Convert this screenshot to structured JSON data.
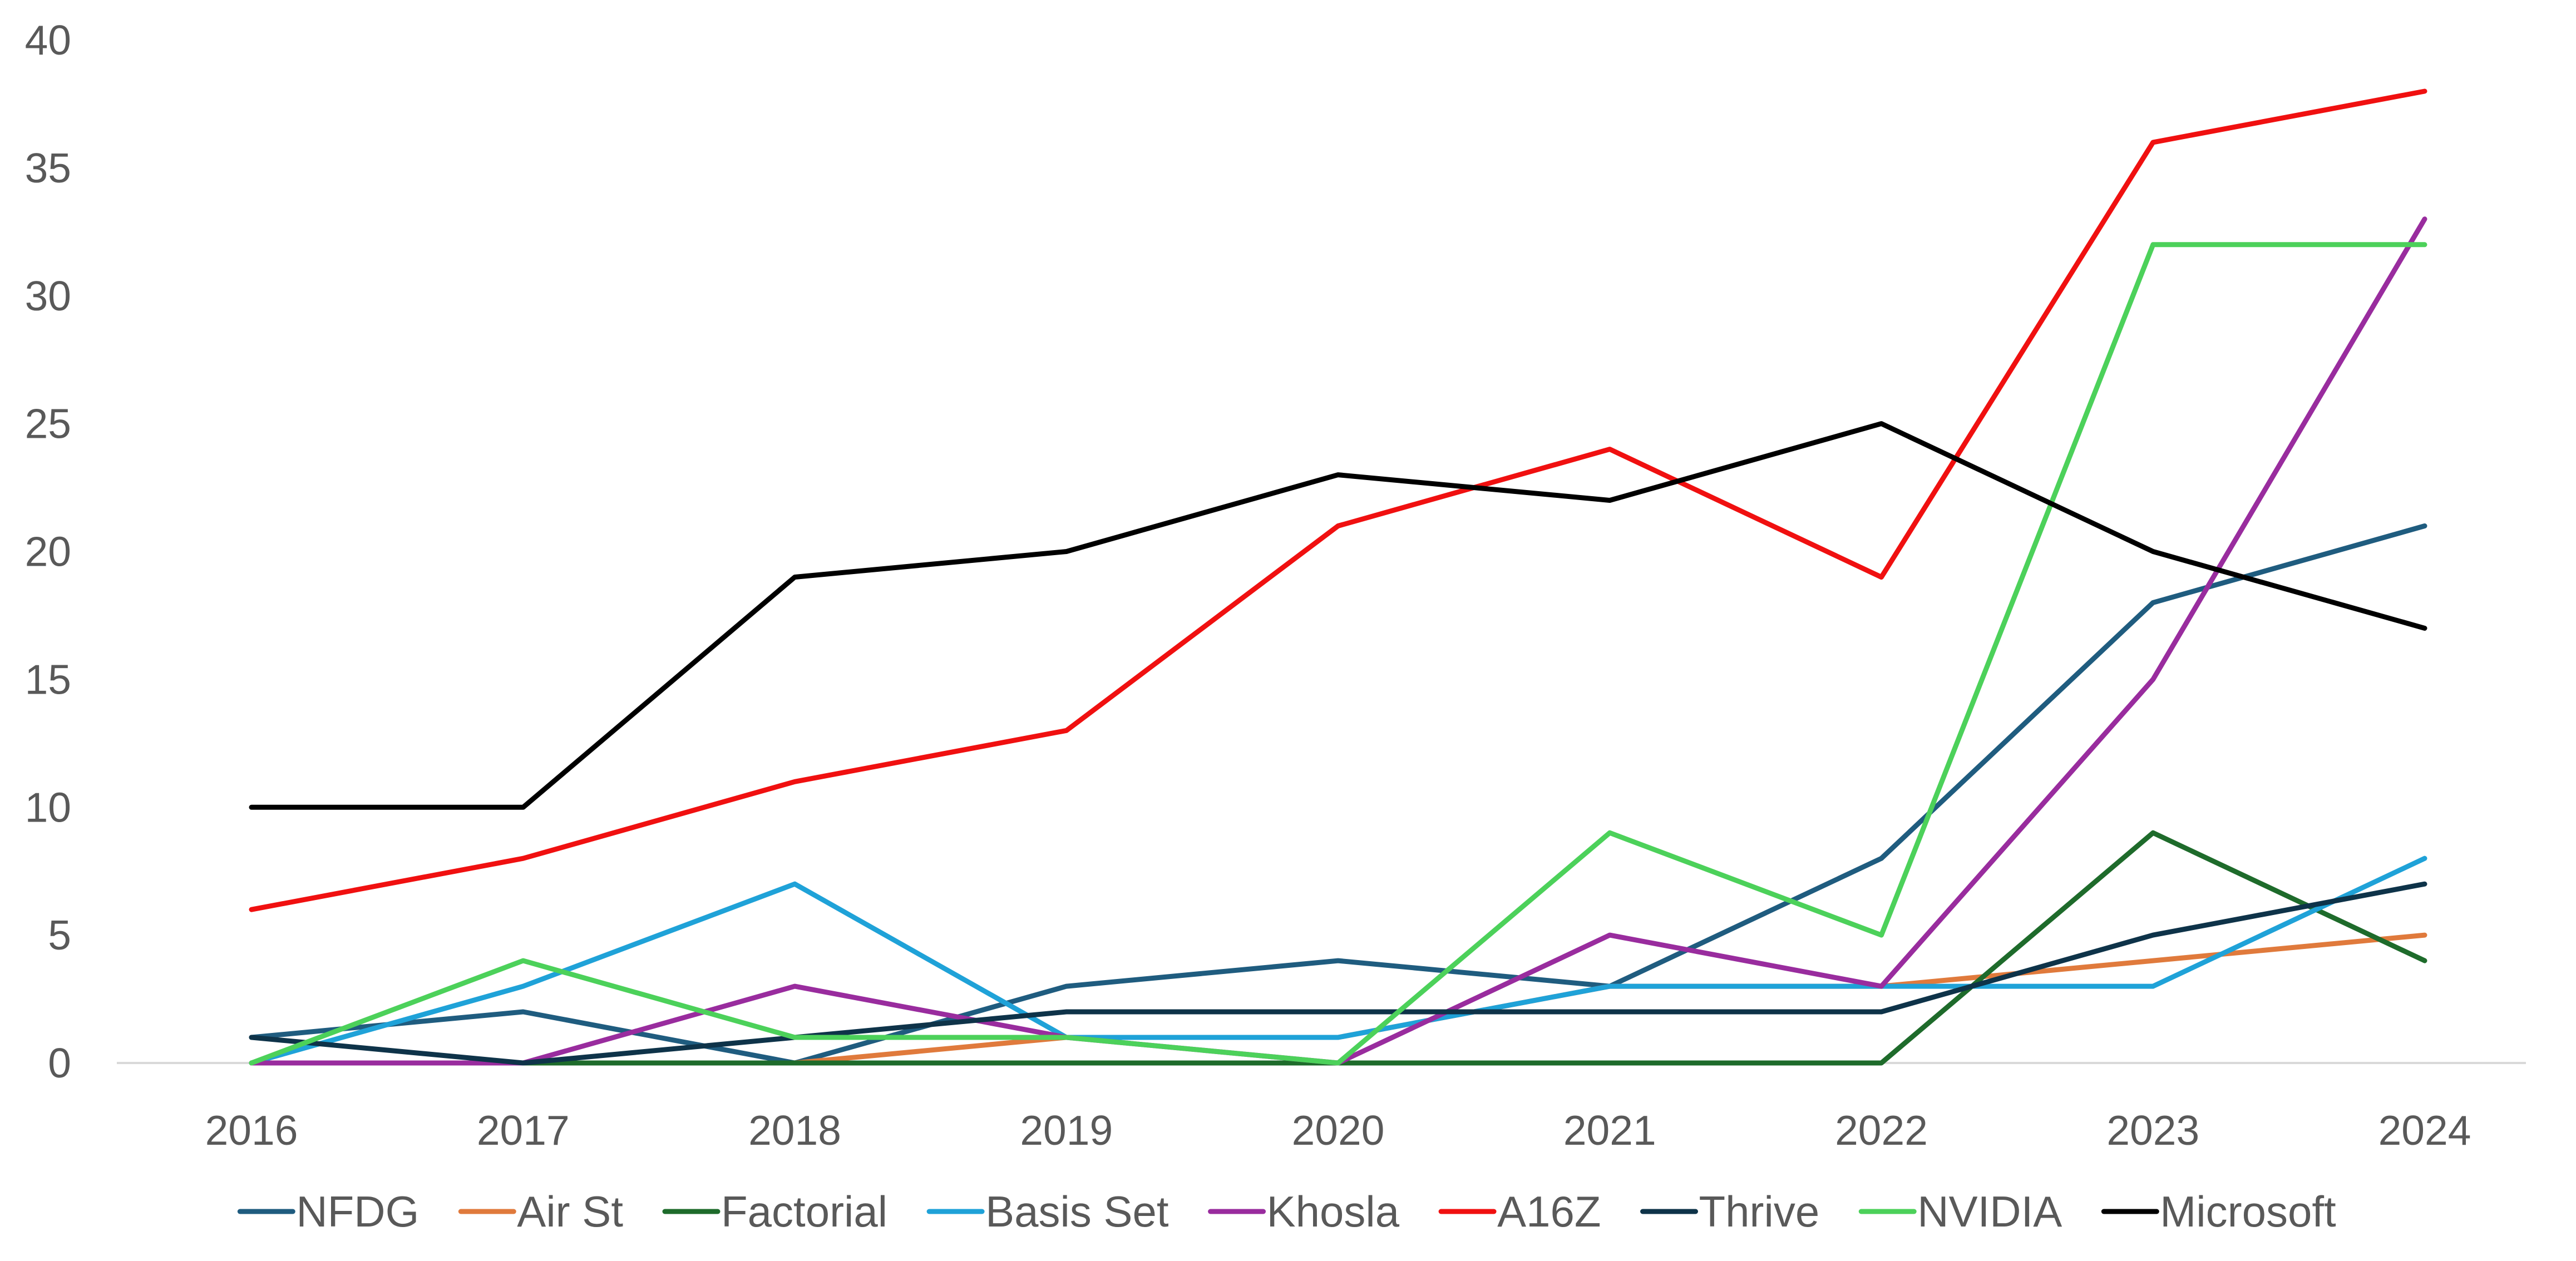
{
  "chart_data": {
    "type": "line",
    "title": "",
    "xlabel": "",
    "ylabel": "",
    "x": [
      "2016",
      "2017",
      "2018",
      "2019",
      "2020",
      "2021",
      "2022",
      "2023",
      "2024"
    ],
    "ylim": [
      0,
      40
    ],
    "yticks": [
      0,
      5,
      10,
      15,
      20,
      25,
      30,
      35,
      40
    ],
    "grid": false,
    "legend_position": "bottom",
    "series": [
      {
        "name": "NFDG",
        "color": "#1F5C7F",
        "values": [
          1,
          2,
          0,
          3,
          4,
          3,
          8,
          18,
          21
        ]
      },
      {
        "name": "Air St",
        "color": "#E07A3C",
        "values": [
          0,
          0,
          0,
          1,
          1,
          3,
          3,
          4,
          5
        ]
      },
      {
        "name": "Factorial",
        "color": "#1E6B2B",
        "values": [
          0,
          0,
          0,
          0,
          0,
          0,
          0,
          9,
          4
        ]
      },
      {
        "name": "Basis Set",
        "color": "#1FA2D8",
        "values": [
          0,
          3,
          7,
          1,
          1,
          3,
          3,
          3,
          8
        ]
      },
      {
        "name": "Khosla",
        "color": "#992C9E",
        "values": [
          0,
          0,
          3,
          1,
          0,
          5,
          3,
          15,
          33
        ]
      },
      {
        "name": "A16Z",
        "color": "#F01010",
        "values": [
          6,
          8,
          11,
          13,
          21,
          24,
          19,
          36,
          38
        ]
      },
      {
        "name": "Thrive",
        "color": "#0E3349",
        "values": [
          1,
          0,
          1,
          2,
          2,
          2,
          2,
          5,
          7
        ]
      },
      {
        "name": "NVIDIA",
        "color": "#4CD15A",
        "values": [
          0,
          4,
          1,
          1,
          0,
          9,
          5,
          32,
          32
        ]
      },
      {
        "name": "Microsoft",
        "color": "#000000",
        "values": [
          10,
          10,
          19,
          20,
          23,
          22,
          25,
          20,
          17
        ]
      }
    ]
  }
}
